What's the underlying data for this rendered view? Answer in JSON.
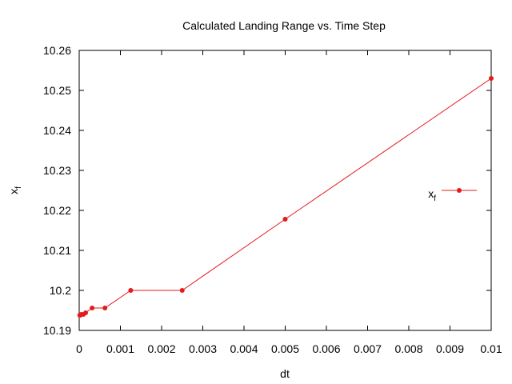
{
  "chart_data": {
    "type": "line",
    "title": "Calculated Landing Range vs. Time Step",
    "xlabel": "dt",
    "ylabel": "x_f",
    "xlim": [
      0,
      0.01
    ],
    "ylim": [
      10.19,
      10.26
    ],
    "xticks": [
      0,
      0.001,
      0.002,
      0.003,
      0.004,
      0.005,
      0.006,
      0.007,
      0.008,
      0.009,
      0.01
    ],
    "xtick_labels": [
      "0",
      "0.001",
      "0.002",
      "0.003",
      "0.004",
      "0.005",
      "0.006",
      "0.007",
      "0.008",
      "0.009",
      "0.01"
    ],
    "yticks": [
      10.19,
      10.2,
      10.21,
      10.22,
      10.23,
      10.24,
      10.25,
      10.26
    ],
    "ytick_labels": [
      "10.19",
      "10.2",
      "10.21",
      "10.22",
      "10.23",
      "10.24",
      "10.25",
      "10.26"
    ],
    "legend_position": "right",
    "series": [
      {
        "name": "x_f",
        "legend_base": "x",
        "legend_sub": "f",
        "color": "#e41a1c",
        "x": [
          1.25e-05,
          2.5e-05,
          5e-05,
          0.0001,
          0.00015625,
          0.0003125,
          0.000625,
          0.00125,
          0.0025,
          0.005,
          0.01
        ],
        "y": [
          10.1938,
          10.1938,
          10.194,
          10.194,
          10.1944,
          10.1956,
          10.1956,
          10.2,
          10.2,
          10.2178,
          10.253
        ]
      }
    ]
  }
}
